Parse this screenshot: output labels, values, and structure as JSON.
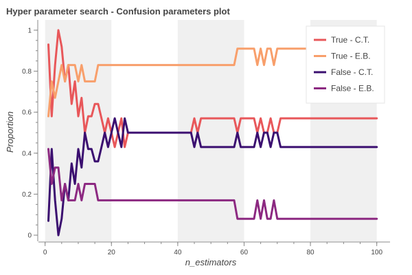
{
  "chart_data": {
    "type": "line",
    "title": "Hyper parameter search - Confusion parameters plot",
    "xlabel": "n_estimators",
    "ylabel": "Proportion",
    "xlim": [
      -2,
      104
    ],
    "ylim": [
      -0.03,
      1.05
    ],
    "xticks": [
      0,
      20,
      40,
      60,
      80,
      100
    ],
    "yticks": [
      0,
      0.2,
      0.4,
      0.6,
      0.8,
      1
    ],
    "ytick_labels": [
      "0",
      "0.2",
      "0.4",
      "0.6",
      "0.8",
      "1"
    ],
    "background_bands": [
      [
        0,
        20
      ],
      [
        40,
        60
      ],
      [
        80,
        100
      ]
    ],
    "band_color": "#f0f0f0",
    "grid": false,
    "legend_position": "top-right",
    "series": [
      {
        "name": "True - C.T.",
        "color": "#e8575a",
        "x": [
          1,
          2,
          3,
          4,
          5,
          6,
          7,
          8,
          9,
          10,
          11,
          12,
          13,
          14,
          15,
          16,
          17,
          18,
          19,
          20,
          21,
          22,
          23,
          24,
          25,
          26,
          27,
          28,
          29,
          30,
          31,
          32,
          33,
          34,
          35,
          36,
          37,
          38,
          39,
          40,
          41,
          42,
          43,
          44,
          45,
          46,
          47,
          48,
          49,
          50,
          51,
          52,
          53,
          54,
          55,
          56,
          57,
          58,
          59,
          60,
          61,
          62,
          63,
          64,
          65,
          66,
          67,
          68,
          69,
          70,
          71,
          72,
          100
        ],
        "y": [
          0.93,
          0.58,
          0.83,
          1.0,
          0.92,
          0.75,
          0.83,
          0.64,
          0.75,
          0.58,
          0.67,
          0.5,
          0.58,
          0.58,
          0.64,
          0.64,
          0.57,
          0.5,
          0.57,
          0.5,
          0.43,
          0.5,
          0.57,
          0.43,
          0.5,
          0.5,
          0.5,
          0.5,
          0.5,
          0.5,
          0.5,
          0.5,
          0.5,
          0.5,
          0.5,
          0.5,
          0.5,
          0.5,
          0.5,
          0.5,
          0.5,
          0.5,
          0.5,
          0.5,
          0.57,
          0.5,
          0.57,
          0.57,
          0.57,
          0.57,
          0.57,
          0.57,
          0.57,
          0.57,
          0.57,
          0.57,
          0.57,
          0.5,
          0.57,
          0.57,
          0.57,
          0.57,
          0.57,
          0.5,
          0.57,
          0.5,
          0.5,
          0.57,
          0.5,
          0.5,
          0.57,
          0.57,
          0.57
        ]
      },
      {
        "name": "True - E.B.",
        "color": "#f89f6b",
        "x": [
          1,
          2,
          3,
          4,
          5,
          6,
          7,
          8,
          9,
          10,
          11,
          12,
          13,
          14,
          15,
          16,
          17,
          18,
          19,
          20,
          56,
          57,
          58,
          59,
          60,
          61,
          62,
          63,
          64,
          65,
          66,
          67,
          68,
          69,
          70,
          71,
          72,
          100
        ],
        "y": [
          0.58,
          0.75,
          0.67,
          0.75,
          0.83,
          0.75,
          0.83,
          0.83,
          0.83,
          0.75,
          0.83,
          0.75,
          0.75,
          0.75,
          0.75,
          0.83,
          0.83,
          0.83,
          0.83,
          0.83,
          0.83,
          0.83,
          0.91,
          0.91,
          0.91,
          0.91,
          0.91,
          0.91,
          0.83,
          0.91,
          0.83,
          0.91,
          0.91,
          0.83,
          0.91,
          0.91,
          0.91,
          0.91
        ]
      },
      {
        "name": "False - C.T.",
        "color": "#3b0f70",
        "x": [
          1,
          2,
          3,
          4,
          5,
          6,
          7,
          8,
          9,
          10,
          11,
          12,
          13,
          14,
          15,
          16,
          17,
          18,
          19,
          20,
          21,
          22,
          23,
          24,
          25,
          26,
          27,
          28,
          29,
          30,
          31,
          32,
          33,
          34,
          35,
          36,
          37,
          38,
          39,
          40,
          41,
          42,
          43,
          44,
          45,
          46,
          47,
          48,
          49,
          50,
          51,
          52,
          53,
          54,
          55,
          56,
          57,
          58,
          59,
          60,
          61,
          62,
          63,
          64,
          65,
          66,
          67,
          68,
          69,
          70,
          71,
          72,
          100
        ],
        "y": [
          0.07,
          0.42,
          0.17,
          0.0,
          0.08,
          0.25,
          0.17,
          0.35,
          0.25,
          0.42,
          0.33,
          0.5,
          0.42,
          0.42,
          0.36,
          0.36,
          0.43,
          0.5,
          0.43,
          0.5,
          0.57,
          0.5,
          0.43,
          0.57,
          0.5,
          0.5,
          0.5,
          0.5,
          0.5,
          0.5,
          0.5,
          0.5,
          0.5,
          0.5,
          0.5,
          0.5,
          0.5,
          0.5,
          0.5,
          0.5,
          0.5,
          0.5,
          0.5,
          0.5,
          0.43,
          0.5,
          0.43,
          0.43,
          0.43,
          0.43,
          0.43,
          0.43,
          0.43,
          0.43,
          0.43,
          0.43,
          0.43,
          0.5,
          0.43,
          0.43,
          0.43,
          0.43,
          0.43,
          0.5,
          0.43,
          0.5,
          0.5,
          0.43,
          0.5,
          0.5,
          0.43,
          0.43,
          0.43
        ]
      },
      {
        "name": "False - E.B.",
        "color": "#8c2981",
        "x": [
          1,
          2,
          3,
          4,
          5,
          6,
          7,
          8,
          9,
          10,
          11,
          12,
          13,
          14,
          15,
          16,
          17,
          18,
          19,
          20,
          56,
          57,
          58,
          59,
          60,
          61,
          62,
          63,
          64,
          65,
          66,
          67,
          68,
          69,
          70,
          71,
          72,
          100
        ],
        "y": [
          0.42,
          0.25,
          0.33,
          0.33,
          0.17,
          0.25,
          0.17,
          0.17,
          0.17,
          0.25,
          0.17,
          0.25,
          0.25,
          0.25,
          0.25,
          0.17,
          0.17,
          0.17,
          0.17,
          0.17,
          0.17,
          0.17,
          0.08,
          0.08,
          0.08,
          0.08,
          0.08,
          0.08,
          0.17,
          0.08,
          0.17,
          0.08,
          0.08,
          0.17,
          0.08,
          0.08,
          0.08,
          0.08
        ]
      }
    ]
  }
}
